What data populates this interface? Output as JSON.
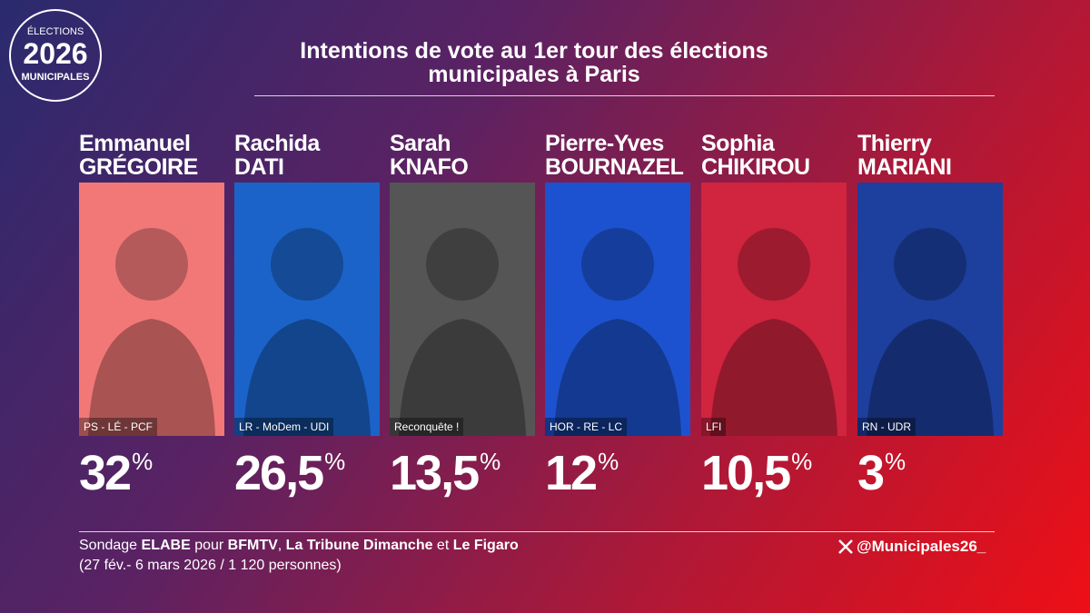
{
  "logo": {
    "line1": "ÉLECTIONS",
    "line2": "2026",
    "line3": "MUNICIPALES"
  },
  "header": {
    "title_line1": "Intentions de vote au 1er tour des élections",
    "title_line2": "municipales à Paris"
  },
  "candidates": [
    {
      "first_name": "Emmanuel",
      "last_name": "GRÉGOIRE",
      "party": "PS - LÉ - PCF",
      "score": "32",
      "unit": "%",
      "color": "#f27878"
    },
    {
      "first_name": "Rachida",
      "last_name": "DATI",
      "party": "LR - MoDem - UDI",
      "score": "26,5",
      "unit": "%",
      "color": "#1b63c9"
    },
    {
      "first_name": "Sarah",
      "last_name": "KNAFO",
      "party": "Reconquête !",
      "score": "13,5",
      "unit": "%",
      "color": "#555555"
    },
    {
      "first_name": "Pierre-Yves",
      "last_name": "BOURNAZEL",
      "party": "HOR - RE - LC",
      "score": "12",
      "unit": "%",
      "color": "#1c52cf"
    },
    {
      "first_name": "Sophia",
      "last_name": "CHIKIROU",
      "party": "LFI",
      "score": "10,5",
      "unit": "%",
      "color": "#d0243f"
    },
    {
      "first_name": "Thierry",
      "last_name": "MARIANI",
      "party": "RN - UDR",
      "score": "3",
      "unit": "%",
      "color": "#1d3f9e"
    }
  ],
  "footer": {
    "source": [
      {
        "text": "Sondage ",
        "bold": false
      },
      {
        "text": "ELABE",
        "bold": true
      },
      {
        "text": " pour ",
        "bold": false
      },
      {
        "text": "BFMTV",
        "bold": true
      },
      {
        "text": ", ",
        "bold": false
      },
      {
        "text": "La Tribune Dimanche",
        "bold": true
      },
      {
        "text": " et ",
        "bold": false
      },
      {
        "text": "Le Figaro",
        "bold": true
      }
    ],
    "details": "(27 fév.- 6 mars 2026 / 1 120 personnes)",
    "handle": "@Municipales26_"
  }
}
